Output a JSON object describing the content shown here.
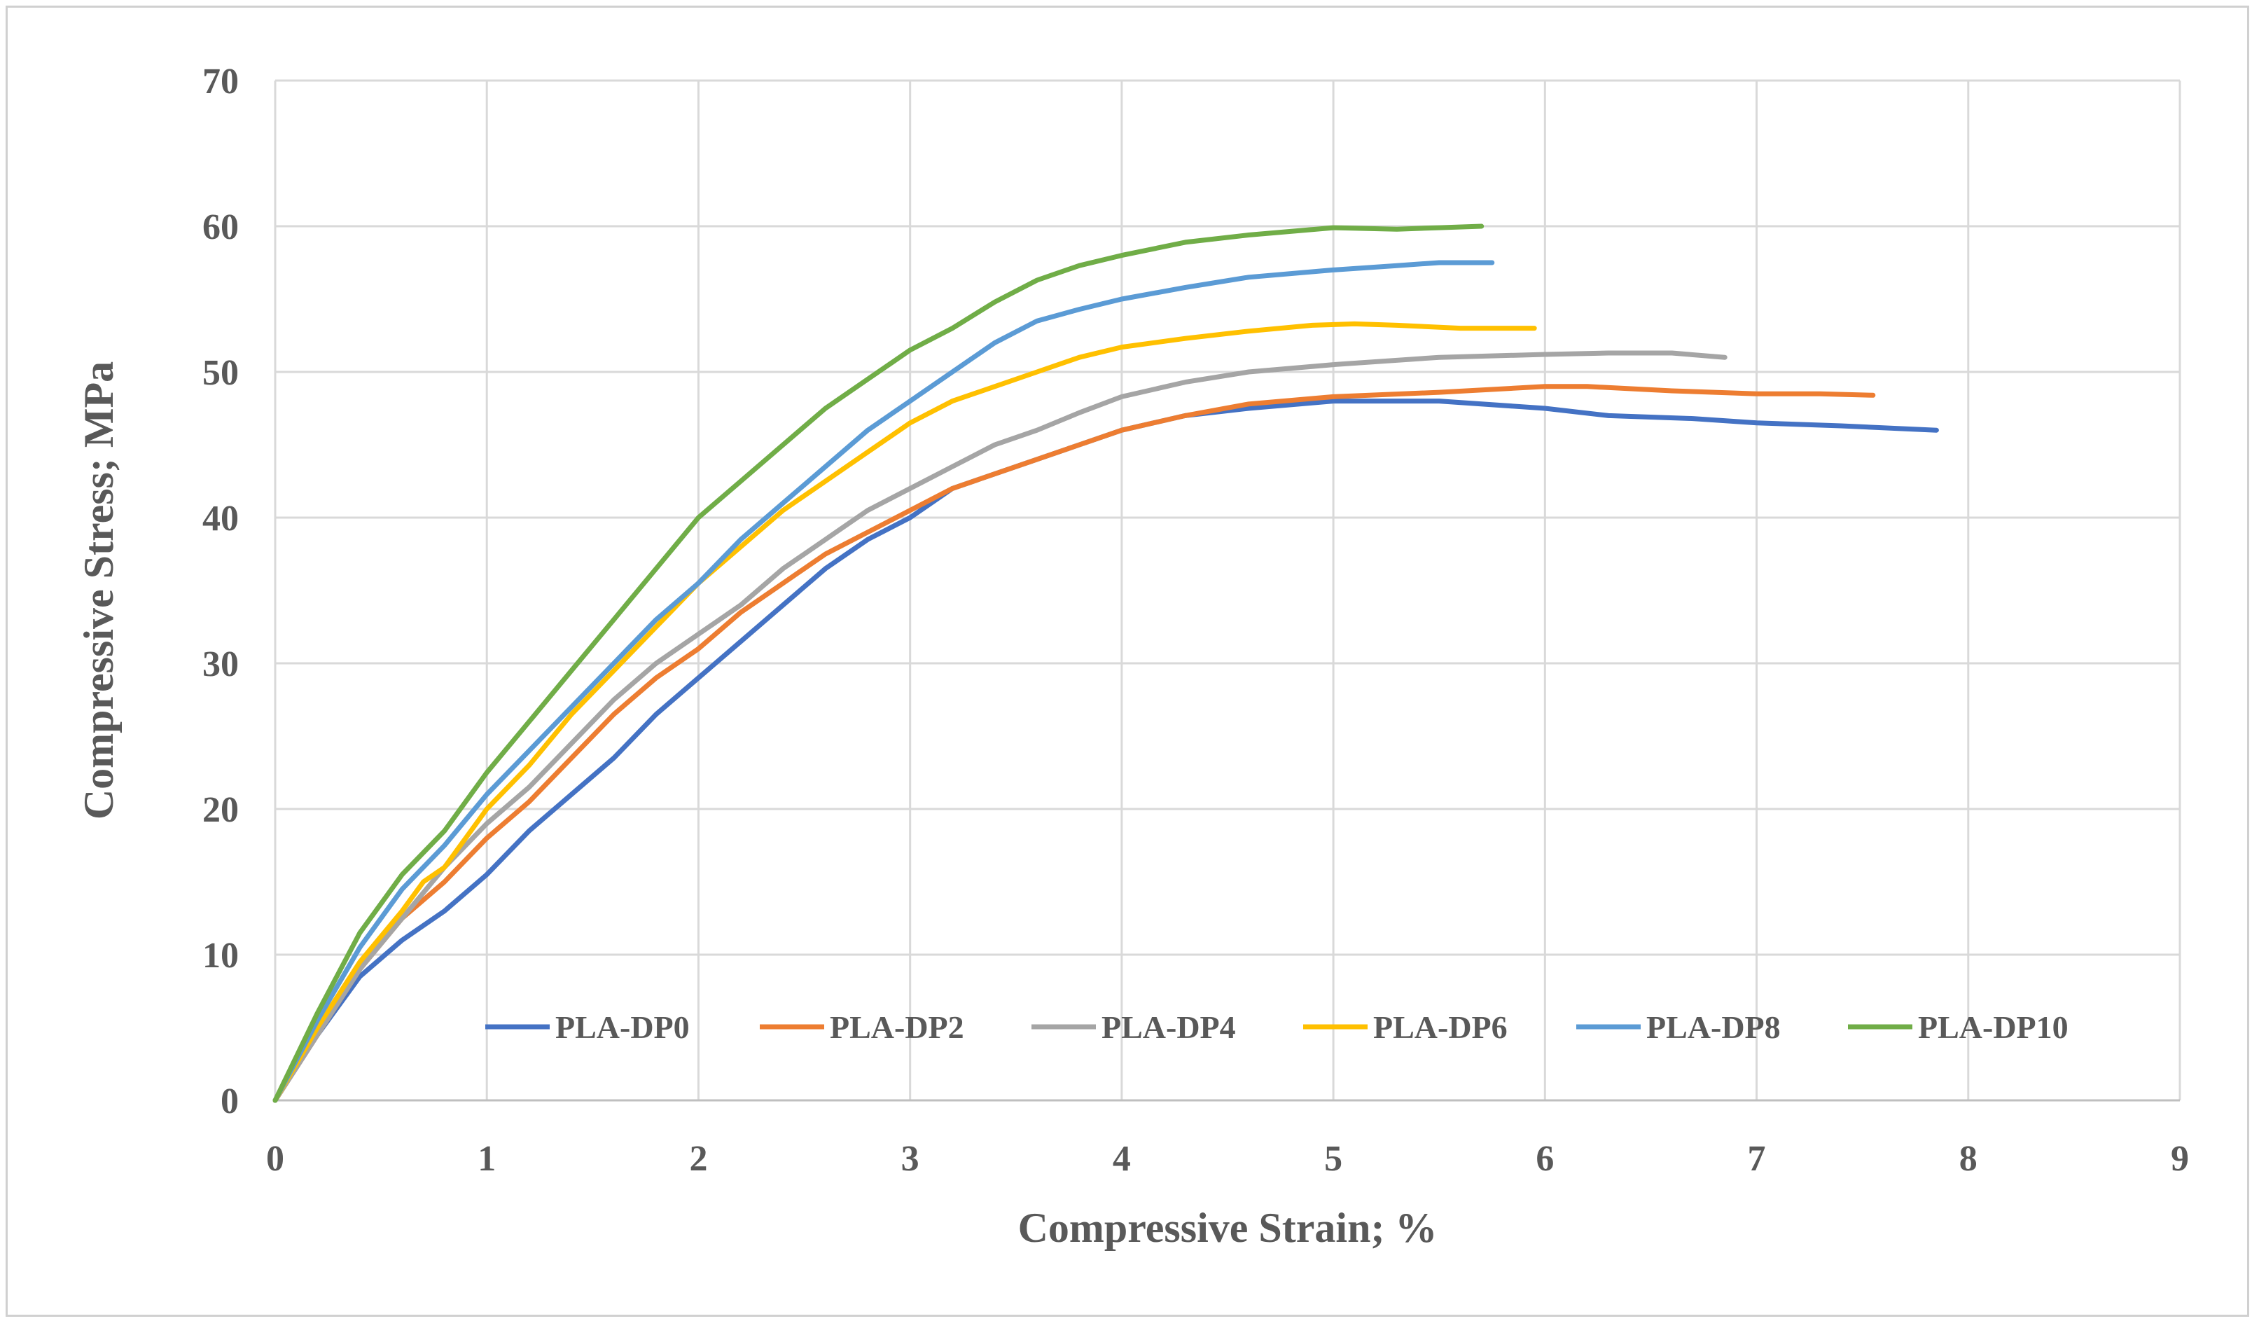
{
  "chart_data": {
    "type": "line",
    "title": "",
    "xlabel": "Compressive Strain; %",
    "ylabel": "Compressive Stress; MPa",
    "xlim": [
      0,
      9
    ],
    "ylim": [
      0,
      70
    ],
    "xticks": [
      0,
      1,
      2,
      3,
      4,
      5,
      6,
      7,
      8,
      9
    ],
    "yticks": [
      0,
      10,
      20,
      30,
      40,
      50,
      60,
      70
    ],
    "grid": true,
    "legend_position": "bottom-inside",
    "series": [
      {
        "name": "PLA-DP0",
        "color": "#4472C4",
        "x": [
          0,
          0.2,
          0.4,
          0.6,
          0.8,
          1.0,
          1.2,
          1.4,
          1.6,
          1.8,
          2.0,
          2.2,
          2.4,
          2.6,
          2.8,
          3.0,
          3.2,
          3.4,
          3.6,
          3.8,
          4.0,
          4.3,
          4.6,
          5.0,
          5.5,
          6.0,
          6.3,
          6.7,
          7.0,
          7.4,
          7.85
        ],
        "y": [
          0,
          4.5,
          8.5,
          11,
          13,
          15.5,
          18.5,
          21,
          23.5,
          26.5,
          29,
          31.5,
          34,
          36.5,
          38.5,
          40,
          42,
          43,
          44,
          45,
          46,
          47,
          47.5,
          48,
          48,
          47.5,
          47,
          46.8,
          46.5,
          46.3,
          46
        ]
      },
      {
        "name": "PLA-DP2",
        "color": "#ED7D31",
        "x": [
          0,
          0.2,
          0.4,
          0.6,
          0.8,
          1.0,
          1.2,
          1.4,
          1.6,
          1.8,
          2.0,
          2.2,
          2.4,
          2.6,
          2.8,
          3.0,
          3.2,
          3.4,
          3.6,
          3.8,
          4.0,
          4.3,
          4.6,
          5.0,
          5.5,
          6.0,
          6.2,
          6.6,
          7.0,
          7.3,
          7.55
        ],
        "y": [
          0,
          4.5,
          9,
          12.5,
          15,
          18,
          20.5,
          23.5,
          26.5,
          29,
          31,
          33.5,
          35.5,
          37.5,
          39,
          40.5,
          42,
          43,
          44,
          45,
          46,
          47,
          47.8,
          48.3,
          48.6,
          49,
          49,
          48.7,
          48.5,
          48.5,
          48.4
        ]
      },
      {
        "name": "PLA-DP4",
        "color": "#A5A5A5",
        "x": [
          0,
          0.2,
          0.4,
          0.6,
          0.8,
          1.0,
          1.2,
          1.4,
          1.6,
          1.8,
          2.0,
          2.2,
          2.4,
          2.6,
          2.8,
          3.0,
          3.2,
          3.4,
          3.6,
          3.8,
          4.0,
          4.3,
          4.6,
          5.0,
          5.5,
          6.0,
          6.3,
          6.6,
          6.85
        ],
        "y": [
          0,
          4.5,
          9,
          12.5,
          16,
          19,
          21.5,
          24.5,
          27.5,
          30,
          32,
          34,
          36.5,
          38.5,
          40.5,
          42,
          43.5,
          45,
          46,
          47.2,
          48.3,
          49.3,
          50,
          50.5,
          51,
          51.2,
          51.3,
          51.3,
          51
        ]
      },
      {
        "name": "PLA-DP6",
        "color": "#FFC000",
        "x": [
          0,
          0.2,
          0.4,
          0.6,
          0.7,
          0.8,
          1.0,
          1.2,
          1.4,
          1.6,
          1.8,
          2.0,
          2.2,
          2.4,
          2.6,
          2.8,
          3.0,
          3.2,
          3.4,
          3.6,
          3.8,
          4.0,
          4.3,
          4.6,
          4.9,
          5.1,
          5.3,
          5.6,
          5.95
        ],
        "y": [
          0,
          5,
          9.5,
          13,
          15,
          16,
          20,
          23,
          26.5,
          29.5,
          32.5,
          35.5,
          38,
          40.5,
          42.5,
          44.5,
          46.5,
          48,
          49,
          50,
          51,
          51.7,
          52.3,
          52.8,
          53.2,
          53.3,
          53.2,
          53,
          53
        ]
      },
      {
        "name": "PLA-DP8",
        "color": "#5B9BD5",
        "x": [
          0,
          0.2,
          0.4,
          0.6,
          0.8,
          1.0,
          1.2,
          1.4,
          1.6,
          1.8,
          2.0,
          2.2,
          2.4,
          2.6,
          2.8,
          3.0,
          3.2,
          3.4,
          3.6,
          3.8,
          4.0,
          4.3,
          4.6,
          5.0,
          5.3,
          5.5,
          5.75
        ],
        "y": [
          0,
          5.5,
          10.5,
          14.5,
          17.5,
          21,
          24,
          27,
          30,
          33,
          35.5,
          38.5,
          41,
          43.5,
          46,
          48,
          50,
          52,
          53.5,
          54.3,
          55,
          55.8,
          56.5,
          57,
          57.3,
          57.5,
          57.5
        ]
      },
      {
        "name": "PLA-DP10",
        "color": "#70AD47",
        "x": [
          0,
          0.2,
          0.4,
          0.6,
          0.8,
          1.0,
          1.2,
          1.4,
          1.6,
          1.8,
          2.0,
          2.2,
          2.4,
          2.6,
          2.8,
          3.0,
          3.2,
          3.4,
          3.6,
          3.8,
          4.0,
          4.3,
          4.6,
          5.0,
          5.3,
          5.5,
          5.7
        ],
        "y": [
          0,
          6,
          11.5,
          15.5,
          18.5,
          22.5,
          26,
          29.5,
          33,
          36.5,
          40,
          42.5,
          45,
          47.5,
          49.5,
          51.5,
          53,
          54.8,
          56.3,
          57.3,
          58,
          58.9,
          59.4,
          59.9,
          59.8,
          59.9,
          60
        ]
      }
    ]
  }
}
